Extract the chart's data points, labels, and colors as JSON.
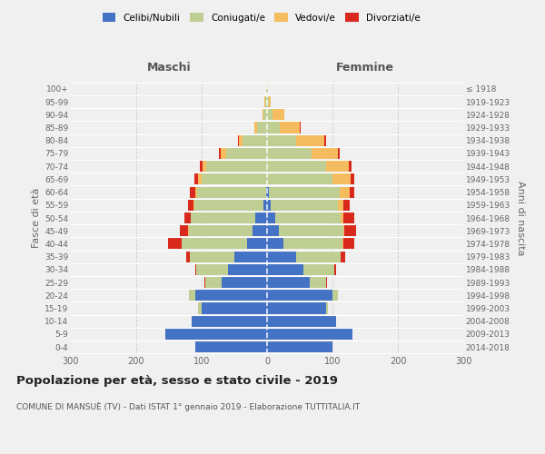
{
  "age_groups": [
    "0-4",
    "5-9",
    "10-14",
    "15-19",
    "20-24",
    "25-29",
    "30-34",
    "35-39",
    "40-44",
    "45-49",
    "50-54",
    "55-59",
    "60-64",
    "65-69",
    "70-74",
    "75-79",
    "80-84",
    "85-89",
    "90-94",
    "95-99",
    "100+"
  ],
  "birth_years": [
    "2014-2018",
    "2009-2013",
    "2004-2008",
    "1999-2003",
    "1994-1998",
    "1989-1993",
    "1984-1988",
    "1979-1983",
    "1974-1978",
    "1969-1973",
    "1964-1968",
    "1959-1963",
    "1954-1958",
    "1949-1953",
    "1944-1948",
    "1939-1943",
    "1934-1938",
    "1929-1933",
    "1924-1928",
    "1919-1923",
    "≤ 1918"
  ],
  "male_celibe": [
    110,
    155,
    115,
    100,
    110,
    70,
    60,
    50,
    30,
    22,
    18,
    6,
    2,
    0,
    0,
    0,
    0,
    0,
    0,
    0,
    0
  ],
  "male_coniugato": [
    0,
    0,
    0,
    5,
    10,
    25,
    48,
    68,
    100,
    98,
    98,
    105,
    105,
    100,
    93,
    63,
    38,
    15,
    5,
    3,
    1
  ],
  "male_vedovo": [
    0,
    0,
    0,
    0,
    0,
    0,
    0,
    0,
    1,
    1,
    1,
    2,
    3,
    5,
    5,
    8,
    5,
    4,
    2,
    1,
    0
  ],
  "male_divorziato": [
    0,
    0,
    0,
    0,
    0,
    1,
    2,
    5,
    20,
    12,
    10,
    8,
    8,
    6,
    5,
    3,
    2,
    1,
    0,
    0,
    0
  ],
  "female_celibe": [
    100,
    130,
    105,
    90,
    100,
    65,
    55,
    45,
    25,
    18,
    12,
    5,
    3,
    0,
    0,
    0,
    0,
    0,
    0,
    0,
    0
  ],
  "female_coniugato": [
    0,
    0,
    0,
    3,
    8,
    25,
    48,
    68,
    90,
    98,
    100,
    103,
    108,
    100,
    90,
    68,
    45,
    20,
    8,
    3,
    1
  ],
  "female_vedovo": [
    0,
    0,
    0,
    0,
    0,
    0,
    0,
    0,
    1,
    2,
    4,
    8,
    15,
    28,
    35,
    40,
    42,
    30,
    18,
    3,
    1
  ],
  "female_divorziata": [
    0,
    0,
    0,
    0,
    0,
    2,
    3,
    6,
    18,
    18,
    18,
    10,
    8,
    5,
    4,
    3,
    3,
    1,
    0,
    0,
    0
  ],
  "colors": {
    "celibe": "#4472C4",
    "coniugato": "#BFCE93",
    "vedovo": "#F4BC5E",
    "divorziato": "#D9291C"
  },
  "xlim": 300,
  "title": "Popolazione per età, sesso e stato civile - 2019",
  "subtitle": "COMUNE DI MANSUÈ (TV) - Dati ISTAT 1° gennaio 2019 - Elaborazione TUTTITALIA.IT",
  "ylabel_left": "Fasce di età",
  "ylabel_right": "Anni di nascita",
  "xlabel_left": "Maschi",
  "xlabel_right": "Femmine",
  "bg_color": "#f0f0f0",
  "grid_color": "#cccccc"
}
